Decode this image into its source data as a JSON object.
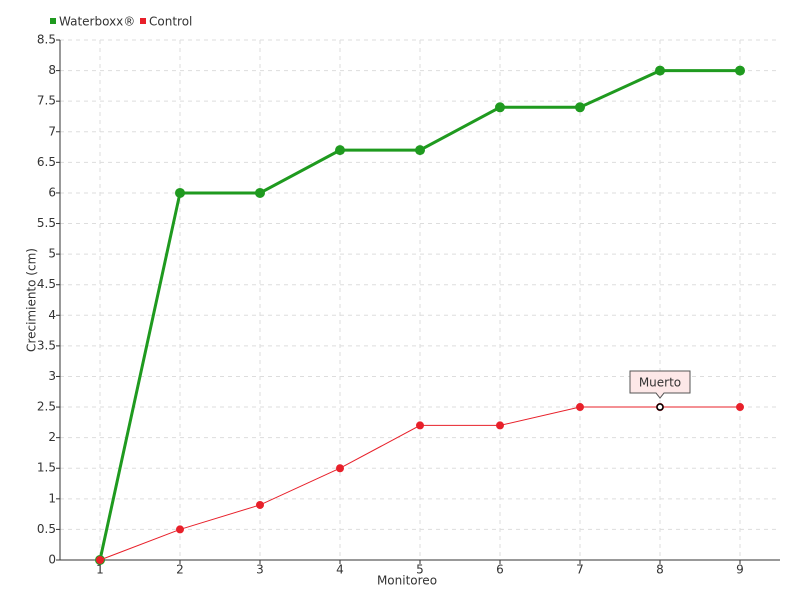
{
  "chart_data": {
    "type": "line",
    "x": [
      1,
      2,
      3,
      4,
      5,
      6,
      7,
      8,
      9
    ],
    "series": [
      {
        "name": "Waterboxx®",
        "color": "#1f9a1f",
        "values": [
          0,
          6,
          6,
          6.7,
          6.7,
          7.4,
          7.4,
          8,
          8
        ]
      },
      {
        "name": "Control",
        "color": "#e8202a",
        "values": [
          0,
          0.5,
          0.9,
          1.5,
          2.2,
          2.2,
          2.5,
          2.5,
          2.5
        ]
      }
    ],
    "xlabel": "Monitoreo",
    "ylabel": "Crecimiento (cm)",
    "xlim": [
      0.5,
      9.5
    ],
    "xticks": [
      1,
      2,
      3,
      4,
      5,
      6,
      7,
      8,
      9
    ],
    "ylim": [
      0,
      8.5
    ],
    "yticks": [
      0,
      0.5,
      1,
      1.5,
      2,
      2.5,
      3,
      3.5,
      4,
      4.5,
      5,
      5.5,
      6,
      6.5,
      7,
      7.5,
      8,
      8.5
    ],
    "grid": true,
    "legend": "top-left",
    "annotations": [
      {
        "text": "Muerto",
        "x": 8,
        "y": 2.5
      }
    ]
  }
}
